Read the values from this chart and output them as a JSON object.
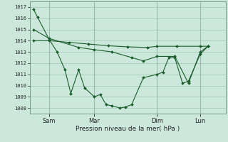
{
  "background_color": "#cce8dc",
  "grid_color": "#aaccbb",
  "line_color": "#1a5c2a",
  "xlabel": "Pression niveau de la mer( hPa )",
  "ylim": [
    1007.5,
    1017.5
  ],
  "yticks": [
    1008,
    1009,
    1010,
    1011,
    1012,
    1013,
    1014,
    1015,
    1016,
    1017
  ],
  "ytick_labels": [
    "1008",
    "1009",
    "1010",
    "1011",
    "1012",
    "1013",
    "1014",
    "1015",
    "1016",
    "1017"
  ],
  "xlim": [
    0,
    100
  ],
  "x_tick_positions": [
    10,
    33,
    65,
    87
  ],
  "x_tick_labels": [
    "Sam",
    "Mar",
    "Dim",
    "Lun"
  ],
  "line1_x": [
    2,
    4,
    10,
    14,
    18,
    21,
    25,
    28,
    33,
    36,
    39,
    42,
    46,
    49,
    52,
    58,
    65,
    68,
    71,
    74,
    78,
    81,
    87,
    91
  ],
  "line1_y": [
    1016.8,
    1016.1,
    1014.1,
    1013.0,
    1011.4,
    1009.3,
    1011.4,
    1009.8,
    1009.0,
    1009.2,
    1008.3,
    1008.2,
    1008.0,
    1008.1,
    1008.3,
    1010.7,
    1011.0,
    1011.2,
    1012.5,
    1012.5,
    1010.2,
    1010.4,
    1012.8,
    1013.5
  ],
  "line2_x": [
    2,
    10,
    25,
    33,
    42,
    52,
    58,
    65,
    74,
    81,
    87,
    91
  ],
  "line2_y": [
    1015.0,
    1014.2,
    1013.4,
    1013.2,
    1013.0,
    1012.5,
    1012.2,
    1012.6,
    1012.6,
    1010.2,
    1013.0,
    1013.5
  ],
  "line3_x": [
    2,
    10,
    20,
    30,
    40,
    50,
    60,
    65,
    75,
    87,
    91
  ],
  "line3_y": [
    1014.0,
    1014.0,
    1013.85,
    1013.7,
    1013.55,
    1013.45,
    1013.4,
    1013.5,
    1013.5,
    1013.5,
    1013.5
  ]
}
